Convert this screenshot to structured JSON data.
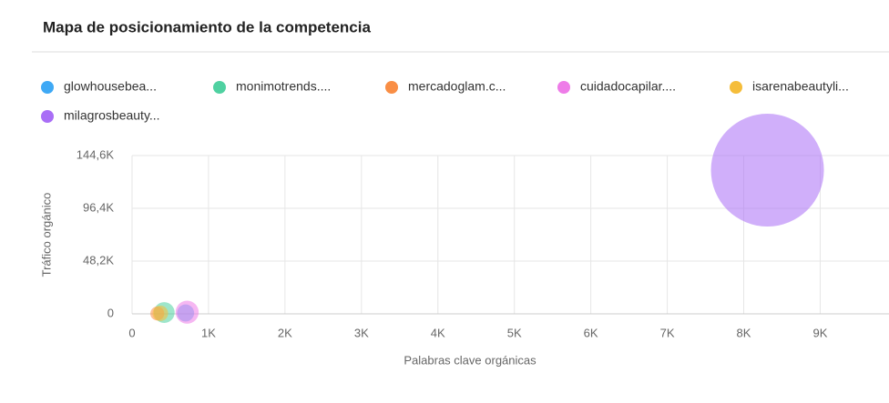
{
  "chart_data": {
    "type": "bubble",
    "title": "Mapa de posicionamiento de la competencia",
    "x_label": "Palabras clave orgánicas",
    "y_label": "Tráfico orgánico",
    "xlim": [
      0,
      9900
    ],
    "ylim": [
      0,
      144600
    ],
    "xticks": [
      0,
      {
        "value": 1000,
        "label": "1K"
      },
      {
        "value": 2000,
        "label": "2K"
      },
      {
        "value": 3000,
        "label": "3K"
      },
      {
        "value": 4000,
        "label": "4K"
      },
      {
        "value": 5000,
        "label": "5K"
      },
      {
        "value": 6000,
        "label": "6K"
      },
      {
        "value": 7000,
        "label": "7K"
      },
      {
        "value": 8000,
        "label": "8K"
      },
      {
        "value": 9000,
        "label": "9K"
      }
    ],
    "yticks": [
      0,
      {
        "value": 48200,
        "label": "48,2K"
      },
      {
        "value": 96400,
        "label": "96,4K"
      },
      {
        "value": 144600,
        "label": "144,6K"
      }
    ],
    "grid": true,
    "series": [
      {
        "name": "glowhousebea...",
        "color": "#3fa9f5",
        "x": [
          700
        ],
        "values": [
          800
        ],
        "sizes": [
          3000
        ]
      },
      {
        "name": "monimotrends....",
        "color": "#4fd1a1",
        "x": [
          420
        ],
        "values": [
          1200
        ],
        "sizes": [
          4500
        ]
      },
      {
        "name": "mercadoglam.c...",
        "color": "#f98e45",
        "x": [
          330
        ],
        "values": [
          300
        ],
        "sizes": [
          2000
        ]
      },
      {
        "name": "cuidadocapilar....",
        "color": "#ee7ce8",
        "x": [
          720
        ],
        "values": [
          1500
        ],
        "sizes": [
          5500
        ]
      },
      {
        "name": "isarenabeautyli...",
        "color": "#f5bd3a",
        "x": [
          370
        ],
        "values": [
          500
        ],
        "sizes": [
          2500
        ]
      },
      {
        "name": "milagrosbeauty...",
        "color": "#a96ef6",
        "x": [
          8310
        ],
        "values": [
          131300
        ],
        "sizes": [
          131300
        ]
      }
    ]
  }
}
